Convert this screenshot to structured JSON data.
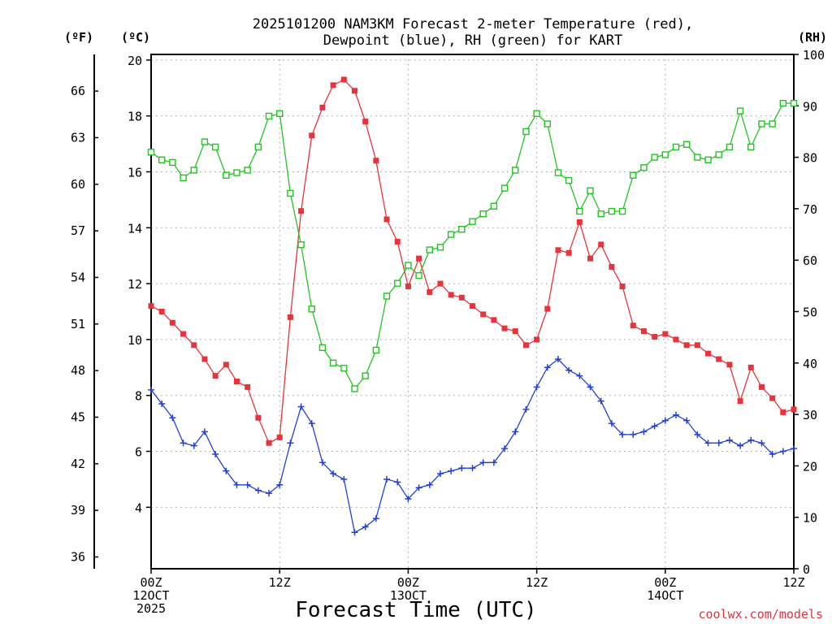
{
  "colors": {
    "temp": "#e8333a",
    "dewpoint": "#2340d8",
    "rh": "#22c422",
    "credit": "#e2333a"
  },
  "chart_data": {
    "type": "line",
    "title_lines": [
      "2025101200 NAM3KM Forecast 2-meter Temperature (red),",
      "Dewpoint (blue), RH (green) for KART"
    ],
    "xlabel": "Forecast Time (UTC)",
    "credit": "coolwx.com/models",
    "units": {
      "fahrenheit": "(ºF)",
      "celsius": "(ºC)",
      "rh": "(RH)"
    },
    "xlim": [
      0,
      60
    ],
    "x_ticks": [
      {
        "x": 0,
        "lines": [
          "00Z",
          "12OCT",
          "2025"
        ]
      },
      {
        "x": 12,
        "lines": [
          "12Z"
        ]
      },
      {
        "x": 24,
        "lines": [
          "00Z",
          "13OCT"
        ]
      },
      {
        "x": 36,
        "lines": [
          "12Z"
        ]
      },
      {
        "x": 48,
        "lines": [
          "00Z",
          "14OCT"
        ]
      },
      {
        "x": 60,
        "lines": [
          "12Z"
        ]
      }
    ],
    "celsius_axis": {
      "ylim": [
        1.8,
        20.2
      ],
      "ticks": [
        4,
        6,
        8,
        10,
        12,
        14,
        16,
        18,
        20
      ]
    },
    "fahrenheit_axis": {
      "ticks": [
        36,
        39,
        42,
        45,
        48,
        51,
        54,
        57,
        60,
        63,
        66
      ]
    },
    "rh_axis": {
      "ylim": [
        0,
        100
      ],
      "ticks": [
        0,
        10,
        20,
        30,
        40,
        50,
        60,
        70,
        80,
        90,
        100
      ]
    },
    "x": [
      0,
      1,
      2,
      3,
      4,
      5,
      6,
      7,
      8,
      9,
      10,
      11,
      12,
      13,
      14,
      15,
      16,
      17,
      18,
      19,
      20,
      21,
      22,
      23,
      24,
      25,
      26,
      27,
      28,
      29,
      30,
      31,
      32,
      33,
      34,
      35,
      36,
      37,
      38,
      39,
      40,
      41,
      42,
      43,
      44,
      45,
      46,
      47,
      48,
      49,
      50,
      51,
      52,
      53,
      54,
      55,
      56,
      57,
      58,
      59,
      60
    ],
    "series": [
      {
        "name": "Temperature",
        "axis": "celsius",
        "marker": "filled-square",
        "color_key": "temp",
        "values": [
          11.2,
          11.0,
          10.6,
          10.2,
          9.8,
          9.3,
          8.7,
          9.1,
          8.5,
          8.3,
          7.2,
          6.3,
          6.5,
          10.8,
          14.6,
          17.3,
          18.3,
          19.1,
          19.3,
          18.9,
          17.8,
          16.4,
          14.3,
          13.5,
          11.9,
          12.9,
          11.7,
          12.0,
          11.6,
          11.5,
          11.2,
          10.9,
          10.7,
          10.4,
          10.3,
          9.8,
          10.0,
          11.1,
          13.2,
          13.1,
          14.2,
          12.9,
          13.4,
          12.6,
          11.9,
          10.5,
          10.3,
          10.1,
          10.2,
          10.0,
          9.8,
          9.8,
          9.5,
          9.3,
          9.1,
          7.8,
          9.0,
          8.3,
          7.9,
          7.4,
          7.5
        ]
      },
      {
        "name": "Dewpoint",
        "axis": "celsius",
        "marker": "plus",
        "color_key": "dewpoint",
        "values": [
          8.2,
          7.7,
          7.2,
          6.3,
          6.2,
          6.7,
          5.9,
          5.3,
          4.8,
          4.8,
          4.6,
          4.5,
          4.8,
          6.3,
          7.6,
          7.0,
          5.6,
          5.2,
          5.0,
          3.1,
          3.3,
          3.6,
          5.0,
          4.9,
          4.3,
          4.7,
          4.8,
          5.2,
          5.3,
          5.4,
          5.4,
          5.6,
          5.6,
          6.1,
          6.7,
          7.5,
          8.3,
          9.0,
          9.3,
          8.9,
          8.7,
          8.3,
          7.8,
          7.0,
          6.6,
          6.6,
          6.7,
          6.9,
          7.1,
          7.3,
          7.1,
          6.6,
          6.3,
          6.3,
          6.4,
          6.2,
          6.4,
          6.3,
          5.9,
          6.0,
          6.1
        ]
      },
      {
        "name": "RH",
        "axis": "rh",
        "marker": "open-square",
        "color_key": "rh",
        "values": [
          81,
          79.5,
          79,
          76,
          77.5,
          83,
          82,
          76.5,
          77,
          77.5,
          82,
          88,
          88.5,
          73,
          63,
          50.5,
          43,
          40,
          39,
          35,
          37.5,
          42.5,
          53,
          55.5,
          59,
          57,
          62,
          62.5,
          65,
          66,
          67.5,
          69,
          70.5,
          74,
          77.5,
          85,
          88.5,
          86.5,
          77,
          75.5,
          69.5,
          73.5,
          69,
          69.5,
          69.5,
          76.5,
          78,
          80,
          80.5,
          82,
          82.5,
          80,
          79.5,
          80.5,
          82,
          89,
          82,
          86.5,
          86.5,
          90.5,
          90.5
        ]
      }
    ]
  }
}
